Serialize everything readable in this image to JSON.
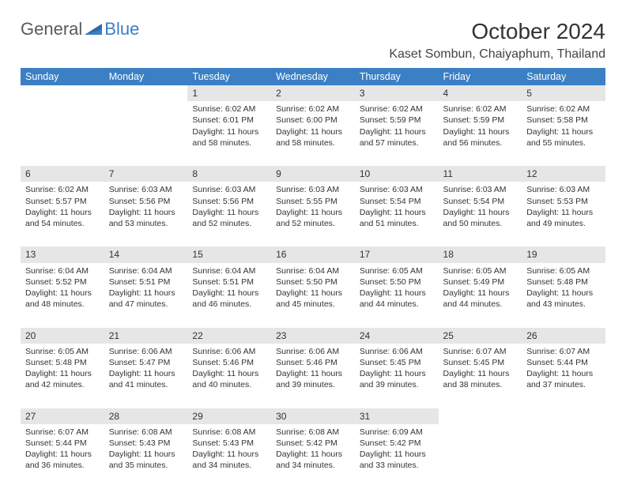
{
  "logo": {
    "word1": "General",
    "word2": "Blue",
    "color_gray": "#5a5a5a",
    "color_blue": "#3b7fc4"
  },
  "title": "October 2024",
  "location": "Kaset Sombun, Chaiyaphum, Thailand",
  "styling": {
    "header_bg": "#3b7fc4",
    "header_fg": "#ffffff",
    "daynum_bg": "#e6e6e6",
    "body_bg": "#ffffff",
    "text_color": "#333333",
    "font_family": "Arial",
    "month_title_fontsize": 28,
    "location_fontsize": 16,
    "th_fontsize": 12.5,
    "daynum_fontsize": 12,
    "cell_fontsize": 10.5,
    "columns": 7
  },
  "weekdays": [
    "Sunday",
    "Monday",
    "Tuesday",
    "Wednesday",
    "Thursday",
    "Friday",
    "Saturday"
  ],
  "weeks": [
    [
      null,
      null,
      {
        "n": "1",
        "sr": "6:02 AM",
        "ss": "6:01 PM",
        "dl": "11 hours and 58 minutes."
      },
      {
        "n": "2",
        "sr": "6:02 AM",
        "ss": "6:00 PM",
        "dl": "11 hours and 58 minutes."
      },
      {
        "n": "3",
        "sr": "6:02 AM",
        "ss": "5:59 PM",
        "dl": "11 hours and 57 minutes."
      },
      {
        "n": "4",
        "sr": "6:02 AM",
        "ss": "5:59 PM",
        "dl": "11 hours and 56 minutes."
      },
      {
        "n": "5",
        "sr": "6:02 AM",
        "ss": "5:58 PM",
        "dl": "11 hours and 55 minutes."
      }
    ],
    [
      {
        "n": "6",
        "sr": "6:02 AM",
        "ss": "5:57 PM",
        "dl": "11 hours and 54 minutes."
      },
      {
        "n": "7",
        "sr": "6:03 AM",
        "ss": "5:56 PM",
        "dl": "11 hours and 53 minutes."
      },
      {
        "n": "8",
        "sr": "6:03 AM",
        "ss": "5:56 PM",
        "dl": "11 hours and 52 minutes."
      },
      {
        "n": "9",
        "sr": "6:03 AM",
        "ss": "5:55 PM",
        "dl": "11 hours and 52 minutes."
      },
      {
        "n": "10",
        "sr": "6:03 AM",
        "ss": "5:54 PM",
        "dl": "11 hours and 51 minutes."
      },
      {
        "n": "11",
        "sr": "6:03 AM",
        "ss": "5:54 PM",
        "dl": "11 hours and 50 minutes."
      },
      {
        "n": "12",
        "sr": "6:03 AM",
        "ss": "5:53 PM",
        "dl": "11 hours and 49 minutes."
      }
    ],
    [
      {
        "n": "13",
        "sr": "6:04 AM",
        "ss": "5:52 PM",
        "dl": "11 hours and 48 minutes."
      },
      {
        "n": "14",
        "sr": "6:04 AM",
        "ss": "5:51 PM",
        "dl": "11 hours and 47 minutes."
      },
      {
        "n": "15",
        "sr": "6:04 AM",
        "ss": "5:51 PM",
        "dl": "11 hours and 46 minutes."
      },
      {
        "n": "16",
        "sr": "6:04 AM",
        "ss": "5:50 PM",
        "dl": "11 hours and 45 minutes."
      },
      {
        "n": "17",
        "sr": "6:05 AM",
        "ss": "5:50 PM",
        "dl": "11 hours and 44 minutes."
      },
      {
        "n": "18",
        "sr": "6:05 AM",
        "ss": "5:49 PM",
        "dl": "11 hours and 44 minutes."
      },
      {
        "n": "19",
        "sr": "6:05 AM",
        "ss": "5:48 PM",
        "dl": "11 hours and 43 minutes."
      }
    ],
    [
      {
        "n": "20",
        "sr": "6:05 AM",
        "ss": "5:48 PM",
        "dl": "11 hours and 42 minutes."
      },
      {
        "n": "21",
        "sr": "6:06 AM",
        "ss": "5:47 PM",
        "dl": "11 hours and 41 minutes."
      },
      {
        "n": "22",
        "sr": "6:06 AM",
        "ss": "5:46 PM",
        "dl": "11 hours and 40 minutes."
      },
      {
        "n": "23",
        "sr": "6:06 AM",
        "ss": "5:46 PM",
        "dl": "11 hours and 39 minutes."
      },
      {
        "n": "24",
        "sr": "6:06 AM",
        "ss": "5:45 PM",
        "dl": "11 hours and 39 minutes."
      },
      {
        "n": "25",
        "sr": "6:07 AM",
        "ss": "5:45 PM",
        "dl": "11 hours and 38 minutes."
      },
      {
        "n": "26",
        "sr": "6:07 AM",
        "ss": "5:44 PM",
        "dl": "11 hours and 37 minutes."
      }
    ],
    [
      {
        "n": "27",
        "sr": "6:07 AM",
        "ss": "5:44 PM",
        "dl": "11 hours and 36 minutes."
      },
      {
        "n": "28",
        "sr": "6:08 AM",
        "ss": "5:43 PM",
        "dl": "11 hours and 35 minutes."
      },
      {
        "n": "29",
        "sr": "6:08 AM",
        "ss": "5:43 PM",
        "dl": "11 hours and 34 minutes."
      },
      {
        "n": "30",
        "sr": "6:08 AM",
        "ss": "5:42 PM",
        "dl": "11 hours and 34 minutes."
      },
      {
        "n": "31",
        "sr": "6:09 AM",
        "ss": "5:42 PM",
        "dl": "11 hours and 33 minutes."
      },
      null,
      null
    ]
  ],
  "labels": {
    "sunrise": "Sunrise:",
    "sunset": "Sunset:",
    "daylight": "Daylight:"
  }
}
